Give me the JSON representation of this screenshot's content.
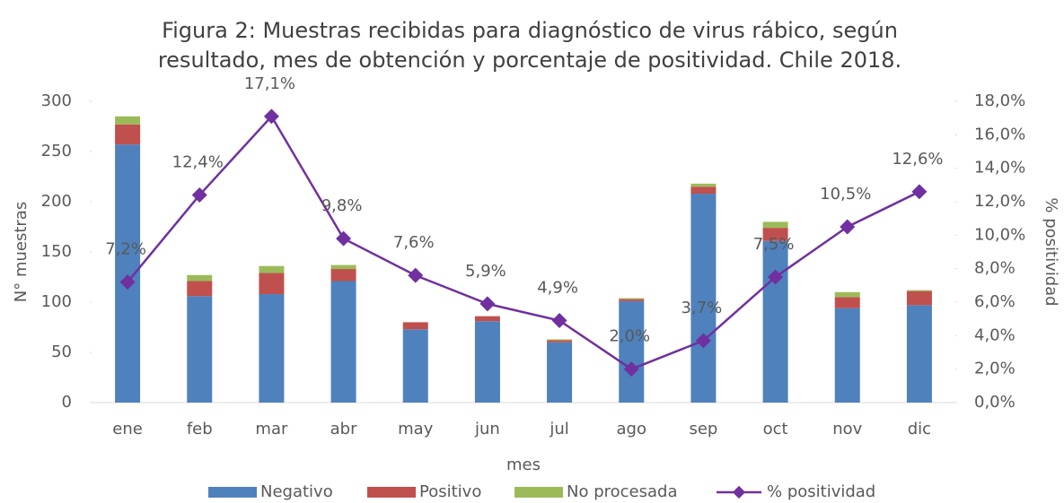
{
  "chart_data": {
    "type": "bar_line",
    "title": [
      "Figura 2: Muestras recibidas para diagnóstico de virus rábico, según",
      "resultado, mes de obtención y porcentaje de positividad. Chile 2018."
    ],
    "x_label": "mes",
    "y_label": "N° muestras",
    "y2_label": "% positividad",
    "categories": [
      "ene",
      "feb",
      "mar",
      "abr",
      "may",
      "jun",
      "jul",
      "ago",
      "sep",
      "oct",
      "nov",
      "dic"
    ],
    "series": [
      {
        "name": "Negativo",
        "color": "#4f81bd",
        "values": [
          257,
          106,
          108,
          121,
          73,
          81,
          60,
          101,
          208,
          161,
          94,
          97
        ]
      },
      {
        "name": "Positivo",
        "color": "#c0504d",
        "values": [
          20,
          15,
          21,
          12,
          7,
          5,
          2,
          2,
          7,
          13,
          11,
          14
        ]
      },
      {
        "name": "No procesada",
        "color": "#9bbb59",
        "values": [
          8,
          6,
          7,
          4,
          0,
          0,
          1,
          1,
          3,
          6,
          5,
          1
        ]
      },
      {
        "name": "%  positividad",
        "color": "#7030a0",
        "axis": "y2",
        "values": [
          7.2,
          12.4,
          17.1,
          9.8,
          7.6,
          5.9,
          4.9,
          2.0,
          3.7,
          7.5,
          10.5,
          12.6
        ],
        "value_labels": [
          "7,2%",
          "12,4%",
          "17,1%",
          "9,8%",
          "7,6%",
          "5,9%",
          "4,9%",
          "2,0%",
          "3,7%",
          "7,5%",
          "10,5%",
          "12,6%"
        ]
      }
    ],
    "ylim": [
      0,
      300
    ],
    "yticks": [
      0,
      50,
      100,
      150,
      200,
      250,
      300
    ],
    "y2lim": [
      0,
      18
    ],
    "y2ticks": [
      {
        "value": 0,
        "label": "0,0%"
      },
      {
        "value": 2,
        "label": "2,0%"
      },
      {
        "value": 4,
        "label": "4,0%"
      },
      {
        "value": 6,
        "label": "6,0%"
      },
      {
        "value": 8,
        "label": "8,0%"
      },
      {
        "value": 10,
        "label": "10,0%"
      },
      {
        "value": 12,
        "label": "12,0%"
      },
      {
        "value": 14,
        "label": "14,0%"
      },
      {
        "value": 16,
        "label": "16,0%"
      },
      {
        "value": 18,
        "label": "18,0%"
      }
    ],
    "legend": "bottom"
  }
}
